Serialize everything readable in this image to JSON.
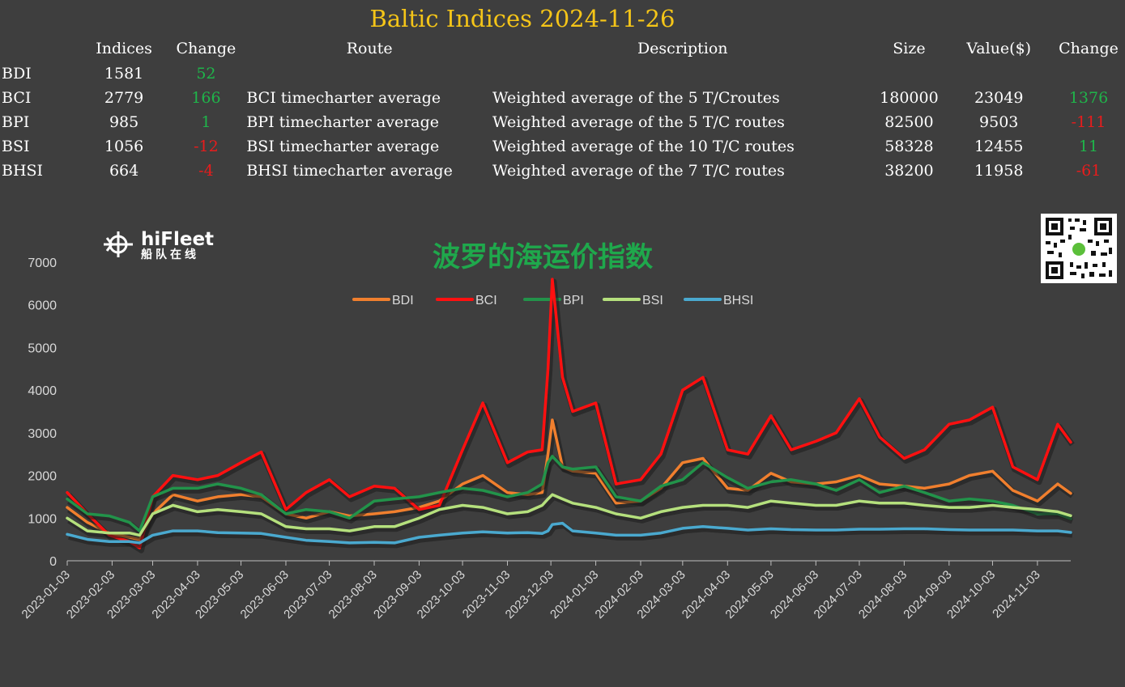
{
  "title": "Baltic Indices 2024-11-26",
  "table": {
    "headers": [
      "",
      "Indices",
      "Change",
      "Route",
      "Description",
      "Size",
      "Value($)",
      "Change"
    ],
    "rows": [
      {
        "name": "BDI",
        "index": "1581",
        "change": "52",
        "change_sign": "pos",
        "route": "",
        "description": "",
        "size": "",
        "value": "",
        "value_change": "",
        "value_change_sign": ""
      },
      {
        "name": "BCI",
        "index": "2779",
        "change": "166",
        "change_sign": "pos",
        "route": "BCI timecharter average",
        "description": "Weighted average of the 5 T/Croutes",
        "size": "180000",
        "value": "23049",
        "value_change": "1376",
        "value_change_sign": "pos"
      },
      {
        "name": "BPI",
        "index": "985",
        "change": "1",
        "change_sign": "pos",
        "route": "BPI timecharter average",
        "description": "Weighted average of the 5 T/C routes",
        "size": "82500",
        "value": "9503",
        "value_change": "-111",
        "value_change_sign": "neg"
      },
      {
        "name": "BSI",
        "index": "1056",
        "change": "-12",
        "change_sign": "neg",
        "route": "BSI timecharter average",
        "description": "Weighted average of the 10 T/C routes",
        "size": "58328",
        "value": "12455",
        "value_change": "11",
        "value_change_sign": "pos"
      },
      {
        "name": "BHSI",
        "index": "664",
        "change": "-4",
        "change_sign": "neg",
        "route": "BHSI timecharter average",
        "description": "Weighted average of the 7 T/C routes",
        "size": "38200",
        "value": "11958",
        "value_change": "-61",
        "value_change_sign": "neg"
      }
    ]
  },
  "logo": {
    "brand": "hiFleet",
    "subtitle": "船队在线"
  },
  "chart_data": {
    "type": "line",
    "title": "波罗的海运价指数",
    "ylim": [
      0,
      7000
    ],
    "yticks": [
      0,
      1000,
      2000,
      3000,
      4000,
      5000,
      6000,
      7000
    ],
    "xlim": [
      "2023-01-03",
      "2024-11-26"
    ],
    "xticks": [
      "2023-01-03",
      "2023-02-03",
      "2023-03-03",
      "2023-04-03",
      "2023-05-03",
      "2023-06-03",
      "2023-07-03",
      "2023-08-03",
      "2023-09-03",
      "2023-10-03",
      "2023-11-03",
      "2023-12-03",
      "2024-01-03",
      "2024-02-03",
      "2024-03-03",
      "2024-04-03",
      "2024-05-03",
      "2024-06-03",
      "2024-07-03",
      "2024-08-03",
      "2024-09-03",
      "2024-10-03",
      "2024-11-03"
    ],
    "grid": false,
    "legend_position": "top",
    "x": [
      "2023-01-03",
      "2023-01-17",
      "2023-02-01",
      "2023-02-15",
      "2023-02-22",
      "2023-03-03",
      "2023-03-17",
      "2023-04-03",
      "2023-04-17",
      "2023-05-03",
      "2023-05-17",
      "2023-06-03",
      "2023-06-17",
      "2023-07-03",
      "2023-07-17",
      "2023-08-03",
      "2023-08-17",
      "2023-09-03",
      "2023-09-17",
      "2023-10-03",
      "2023-10-17",
      "2023-11-03",
      "2023-11-17",
      "2023-11-27",
      "2023-12-01",
      "2023-12-04",
      "2023-12-11",
      "2023-12-18",
      "2024-01-03",
      "2024-01-17",
      "2024-02-03",
      "2024-02-17",
      "2024-03-03",
      "2024-03-17",
      "2024-04-03",
      "2024-04-17",
      "2024-05-03",
      "2024-05-17",
      "2024-06-03",
      "2024-06-17",
      "2024-07-03",
      "2024-07-17",
      "2024-08-03",
      "2024-08-17",
      "2024-09-03",
      "2024-09-17",
      "2024-10-03",
      "2024-10-17",
      "2024-11-03",
      "2024-11-17",
      "2024-11-26"
    ],
    "series": [
      {
        "name": "BDI",
        "color": "#f07f2e",
        "values": [
          1250,
          900,
          650,
          550,
          500,
          1100,
          1550,
          1400,
          1500,
          1550,
          1500,
          1100,
          1000,
          1150,
          1050,
          1100,
          1150,
          1250,
          1400,
          1800,
          2000,
          1600,
          1550,
          1600,
          2500,
          3300,
          2200,
          2100,
          2050,
          1350,
          1400,
          1700,
          2300,
          2400,
          1700,
          1650,
          2050,
          1850,
          1800,
          1850,
          2000,
          1800,
          1750,
          1700,
          1800,
          2000,
          2100,
          1650,
          1400,
          1800,
          1581
        ]
      },
      {
        "name": "BCI",
        "color": "#ff1010",
        "values": [
          1600,
          1100,
          600,
          450,
          300,
          1500,
          2000,
          1900,
          2000,
          2300,
          2550,
          1200,
          1600,
          1900,
          1500,
          1750,
          1700,
          1200,
          1300,
          2600,
          3700,
          2300,
          2550,
          2600,
          4500,
          6600,
          4300,
          3500,
          3700,
          1800,
          1900,
          2500,
          4000,
          4300,
          2600,
          2500,
          3400,
          2600,
          2800,
          3000,
          3800,
          2900,
          2400,
          2600,
          3200,
          3300,
          3600,
          2200,
          1900,
          3200,
          2779
        ]
      },
      {
        "name": "BPI",
        "color": "#22934a",
        "values": [
          1450,
          1100,
          1050,
          900,
          700,
          1500,
          1700,
          1700,
          1800,
          1700,
          1550,
          1100,
          1200,
          1150,
          1000,
          1400,
          1450,
          1500,
          1600,
          1700,
          1650,
          1500,
          1600,
          1800,
          2300,
          2450,
          2200,
          2150,
          2200,
          1500,
          1400,
          1750,
          1900,
          2300,
          1950,
          1700,
          1850,
          1900,
          1800,
          1650,
          1900,
          1600,
          1750,
          1600,
          1400,
          1450,
          1400,
          1300,
          1100,
          1100,
          985
        ]
      },
      {
        "name": "BSI",
        "color": "#b5e07d",
        "values": [
          1000,
          700,
          650,
          650,
          600,
          1100,
          1300,
          1150,
          1200,
          1150,
          1100,
          800,
          750,
          750,
          700,
          800,
          800,
          1000,
          1200,
          1300,
          1250,
          1100,
          1150,
          1300,
          1450,
          1550,
          1450,
          1350,
          1250,
          1100,
          1000,
          1150,
          1250,
          1300,
          1300,
          1250,
          1400,
          1350,
          1300,
          1300,
          1400,
          1350,
          1350,
          1300,
          1250,
          1250,
          1300,
          1250,
          1200,
          1150,
          1056
        ]
      },
      {
        "name": "BHSI",
        "color": "#4aa9cf",
        "values": [
          620,
          500,
          450,
          450,
          420,
          600,
          700,
          700,
          660,
          650,
          640,
          550,
          480,
          450,
          420,
          430,
          420,
          550,
          600,
          650,
          680,
          650,
          660,
          640,
          700,
          850,
          880,
          700,
          650,
          600,
          600,
          650,
          760,
          800,
          760,
          720,
          750,
          730,
          720,
          720,
          740,
          740,
          750,
          750,
          730,
          720,
          720,
          720,
          700,
          700,
          664
        ]
      }
    ]
  }
}
